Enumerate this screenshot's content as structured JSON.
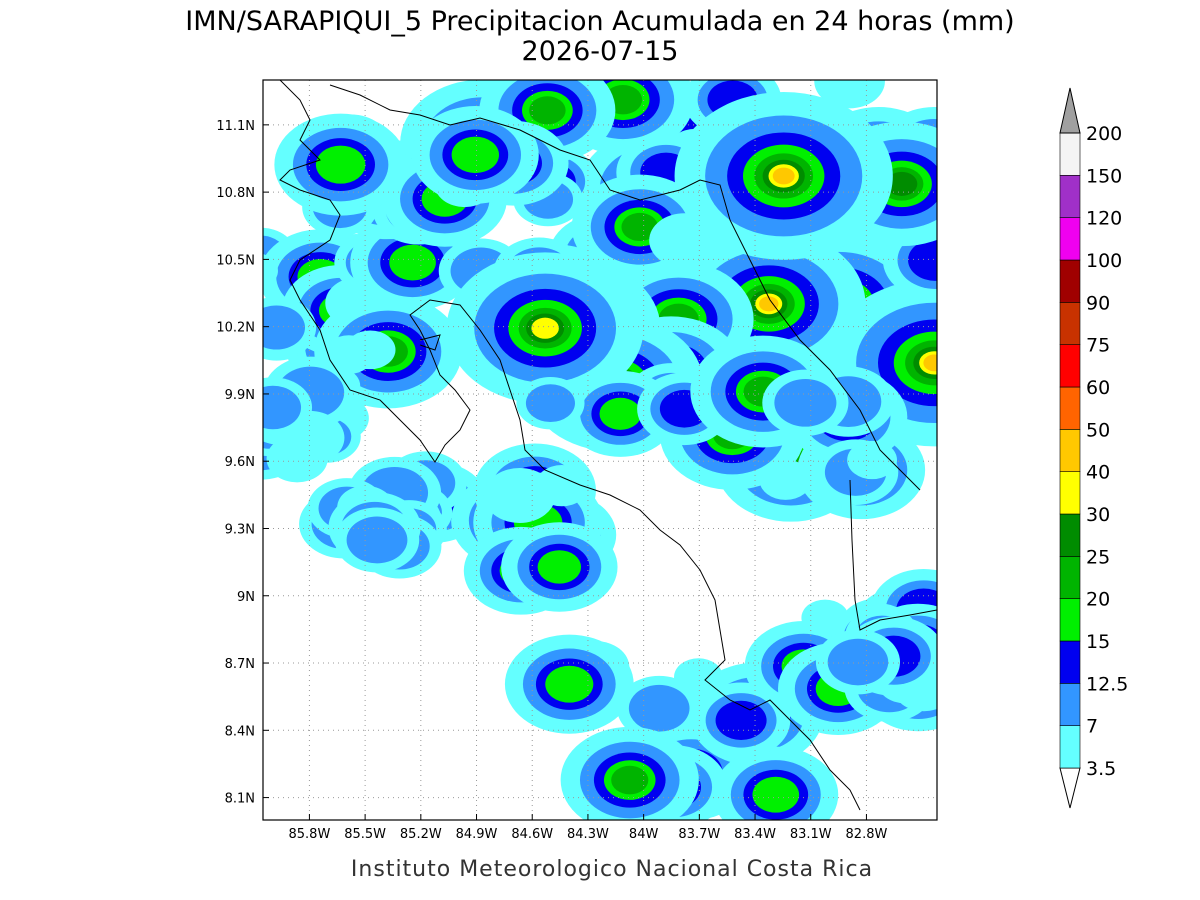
{
  "title": "IMN/SARAPIQUI_5 Precipitacion Acumulada en 24 horas (mm)",
  "subtitle": "2026-07-15",
  "map": {
    "xlim": [
      -86.05,
      -82.42
    ],
    "ylim": [
      8.0,
      11.3
    ],
    "xticks": [
      {
        "value": -85.8,
        "label": "85.8W"
      },
      {
        "value": -85.5,
        "label": "85.5W"
      },
      {
        "value": -85.2,
        "label": "85.2W"
      },
      {
        "value": -84.9,
        "label": "84.9W"
      },
      {
        "value": -84.6,
        "label": "84.6W"
      },
      {
        "value": -84.3,
        "label": "84.3W"
      },
      {
        "value": -84.0,
        "label": "84W"
      },
      {
        "value": -83.7,
        "label": "83.7W"
      },
      {
        "value": -83.4,
        "label": "83.4W"
      },
      {
        "value": -83.1,
        "label": "83.1W"
      },
      {
        "value": -82.8,
        "label": "82.8W"
      }
    ],
    "yticks": [
      {
        "value": 8.1,
        "label": "8.1N"
      },
      {
        "value": 8.4,
        "label": "8.4N"
      },
      {
        "value": 8.7,
        "label": "8.7N"
      },
      {
        "value": 9.0,
        "label": "9N"
      },
      {
        "value": 9.3,
        "label": "9.3N"
      },
      {
        "value": 9.6,
        "label": "9.6N"
      },
      {
        "value": 9.9,
        "label": "9.9N"
      },
      {
        "value": 10.2,
        "label": "10.2N"
      },
      {
        "value": 10.5,
        "label": "10.5N"
      },
      {
        "value": 10.8,
        "label": "10.8N"
      },
      {
        "value": 11.1,
        "label": "11.1N"
      }
    ],
    "grid": true
  },
  "colorbar": {
    "levels": [
      3.5,
      7,
      12.5,
      15,
      20,
      25,
      30,
      40,
      50,
      60,
      75,
      90,
      100,
      120,
      150,
      200
    ],
    "colors": [
      "#ffffff",
      "#64ffff",
      "#3296ff",
      "#0000f0",
      "#00f000",
      "#00b400",
      "#008c00",
      "#ffff00",
      "#ffc800",
      "#ff6400",
      "#ff0000",
      "#c83200",
      "#a00000",
      "#f000f0",
      "#a030c8",
      "#f4f4f4",
      "#a0a0a0"
    ]
  },
  "footer": "Instituto Meteorologico Nacional Costa Rica"
}
